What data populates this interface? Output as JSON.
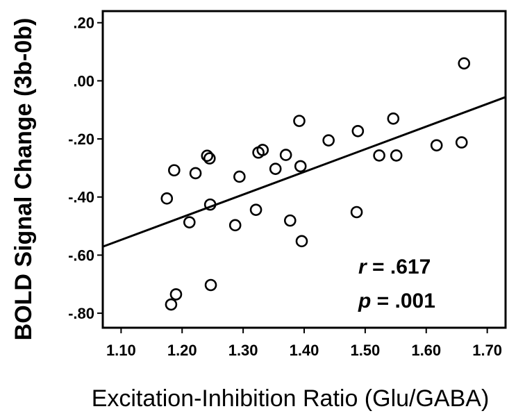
{
  "chart_data": {
    "type": "scatter",
    "title": "",
    "xlabel": "Excitation-Inhibition Ratio (Glu/GABA)",
    "ylabel": "BOLD Signal Change (3b-0b)",
    "xlim": [
      1.07,
      1.73
    ],
    "ylim": [
      -0.85,
      0.24
    ],
    "xticks": [
      1.1,
      1.2,
      1.3,
      1.4,
      1.5,
      1.6,
      1.7
    ],
    "xtick_labels": [
      "1.10",
      "1.20",
      "1.30",
      "1.40",
      "1.50",
      "1.60",
      "1.70"
    ],
    "yticks": [
      0.2,
      0.0,
      -0.2,
      -0.4,
      -0.6,
      -0.8
    ],
    "ytick_labels": [
      ".20",
      ".00",
      "-.20",
      "-.40",
      "-.60",
      "-.80"
    ],
    "grid": false,
    "points": [
      {
        "x": 1.662,
        "y": 0.06
      },
      {
        "x": 1.658,
        "y": -0.212
      },
      {
        "x": 1.617,
        "y": -0.222
      },
      {
        "x": 1.546,
        "y": -0.13
      },
      {
        "x": 1.551,
        "y": -0.257
      },
      {
        "x": 1.523,
        "y": -0.257
      },
      {
        "x": 1.488,
        "y": -0.173
      },
      {
        "x": 1.486,
        "y": -0.452
      },
      {
        "x": 1.44,
        "y": -0.205
      },
      {
        "x": 1.392,
        "y": -0.138
      },
      {
        "x": 1.394,
        "y": -0.294
      },
      {
        "x": 1.396,
        "y": -0.552
      },
      {
        "x": 1.377,
        "y": -0.481
      },
      {
        "x": 1.37,
        "y": -0.255
      },
      {
        "x": 1.353,
        "y": -0.303
      },
      {
        "x": 1.332,
        "y": -0.238
      },
      {
        "x": 1.325,
        "y": -0.247
      },
      {
        "x": 1.321,
        "y": -0.444
      },
      {
        "x": 1.294,
        "y": -0.33
      },
      {
        "x": 1.287,
        "y": -0.497
      },
      {
        "x": 1.241,
        "y": -0.258
      },
      {
        "x": 1.245,
        "y": -0.267
      },
      {
        "x": 1.246,
        "y": -0.426
      },
      {
        "x": 1.247,
        "y": -0.703
      },
      {
        "x": 1.222,
        "y": -0.318
      },
      {
        "x": 1.212,
        "y": -0.487
      },
      {
        "x": 1.187,
        "y": -0.308
      },
      {
        "x": 1.175,
        "y": -0.405
      },
      {
        "x": 1.19,
        "y": -0.735
      },
      {
        "x": 1.182,
        "y": -0.77
      }
    ],
    "fit_line": {
      "x": [
        1.07,
        1.73
      ],
      "y": [
        -0.571,
        -0.056
      ]
    },
    "annotations": {
      "r_symbol": "r",
      "r_value": " = .617",
      "p_symbol": "p",
      "p_value": " = .001"
    },
    "colors": {
      "marker_stroke": "#000000",
      "line": "#000000",
      "background": "#ffffff"
    }
  }
}
